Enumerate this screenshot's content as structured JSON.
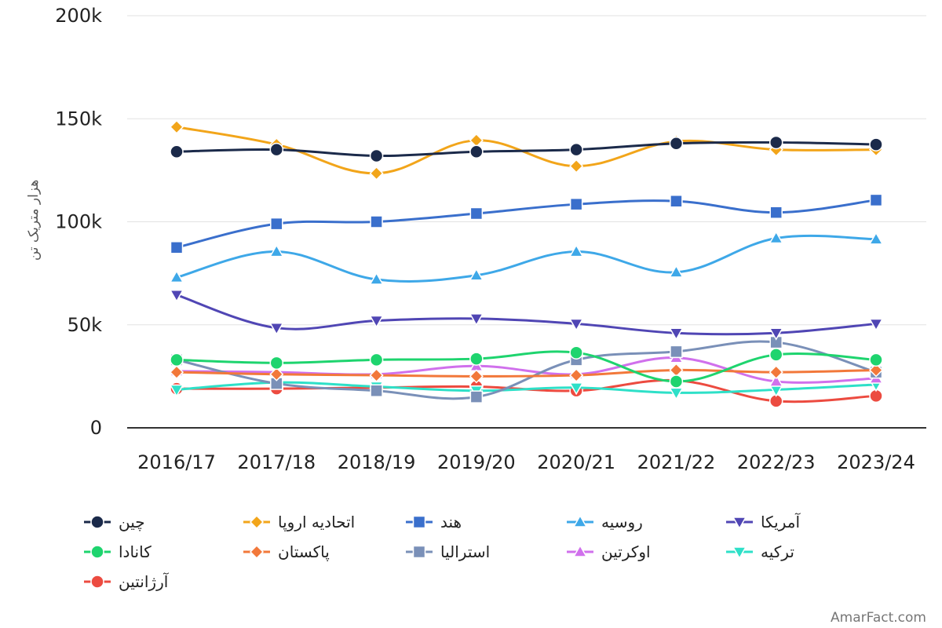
{
  "chart_data": {
    "type": "line",
    "title": "",
    "xlabel": "",
    "ylabel": "هزار متریک تن",
    "ylim": [
      0,
      200000
    ],
    "yticks": [
      0,
      50000,
      100000,
      150000,
      200000
    ],
    "ytick_labels": [
      "0",
      "50k",
      "100k",
      "150k",
      "200k"
    ],
    "grid": true,
    "legend_position": "bottom",
    "categories": [
      "2016/17",
      "2017/18",
      "2018/19",
      "2019/20",
      "2020/21",
      "2021/22",
      "2022/23",
      "2023/24"
    ],
    "series": [
      {
        "name": "چین",
        "color": "#1b2a4a",
        "marker": "circle",
        "values": [
          134000,
          135000,
          132000,
          134000,
          135000,
          138000,
          138500,
          137500
        ]
      },
      {
        "name": "اتحادیه اروپا",
        "color": "#f2a51a",
        "marker": "diamond",
        "values": [
          146000,
          137500,
          123500,
          139500,
          127000,
          139000,
          135000,
          135000
        ]
      },
      {
        "name": "هند",
        "color": "#3a6fcc",
        "marker": "square",
        "values": [
          87500,
          99000,
          100000,
          104000,
          108500,
          110000,
          104500,
          110500
        ]
      },
      {
        "name": "روسیه",
        "color": "#3ea8e8",
        "marker": "triangle-up",
        "values": [
          73000,
          85500,
          72000,
          74000,
          85500,
          75500,
          92000,
          91500
        ]
      },
      {
        "name": "آمریکا",
        "color": "#5046b4",
        "marker": "triangle-down",
        "values": [
          64500,
          48500,
          52000,
          53000,
          50500,
          46000,
          46000,
          50500
        ]
      },
      {
        "name": "کانادا",
        "color": "#1ed46e",
        "marker": "circle",
        "values": [
          33000,
          31500,
          33000,
          33500,
          36500,
          22500,
          35500,
          33000
        ]
      },
      {
        "name": "پاکستان",
        "color": "#f2783a",
        "marker": "diamond",
        "values": [
          27000,
          26000,
          25500,
          25000,
          25500,
          28000,
          27000,
          28000
        ]
      },
      {
        "name": "استرالیا",
        "color": "#7a90b8",
        "marker": "square",
        "values": [
          33000,
          21500,
          18000,
          15000,
          33000,
          37000,
          41500,
          27000
        ]
      },
      {
        "name": "اوکرتین",
        "color": "#d070ec",
        "marker": "triangle-up",
        "values": [
          27500,
          27000,
          26000,
          30000,
          26000,
          34000,
          22500,
          24000
        ]
      },
      {
        "name": "ترکیه",
        "color": "#2ee0c8",
        "marker": "triangle-down",
        "values": [
          18500,
          22000,
          20000,
          18000,
          19500,
          17000,
          18500,
          21000
        ]
      },
      {
        "name": "آرژانتین",
        "color": "#ec4b40",
        "marker": "circle",
        "values": [
          19000,
          19000,
          19500,
          20000,
          18000,
          23000,
          13000,
          15500
        ]
      }
    ]
  },
  "watermark": "AmarFact.com"
}
